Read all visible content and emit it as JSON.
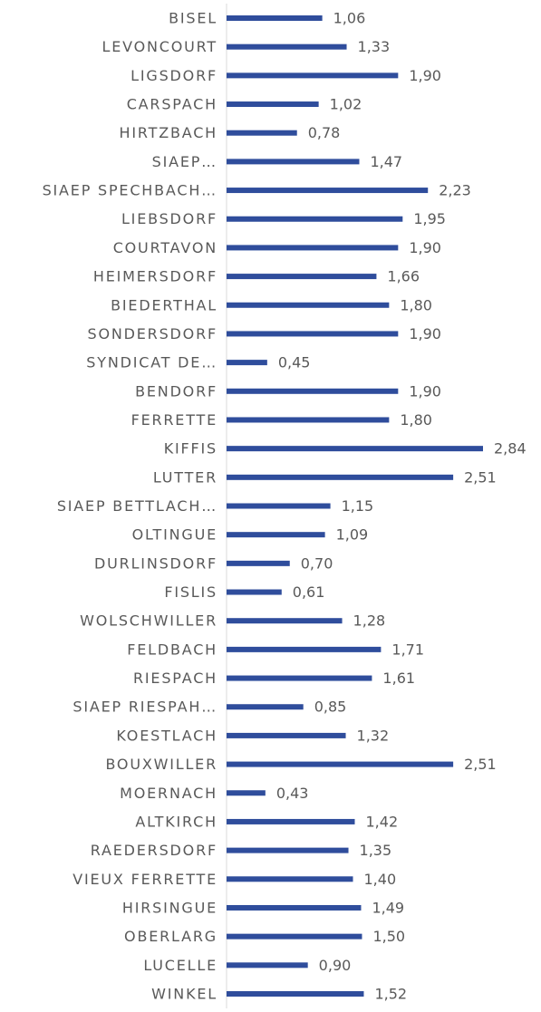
{
  "chart_data": {
    "type": "barh",
    "color": "#2f4d9c",
    "categories": [
      "BISEL",
      "LEVONCOURT",
      "LIGSDORF",
      "CARSPACH",
      "HIRTZBACH",
      "SIAEP…",
      "SIAEP SPECHBACH…",
      "LIEBSDORF",
      "COURTAVON",
      "HEIMERSDORF",
      "BIEDERTHAL",
      "SONDERSDORF",
      "SYNDICAT DE…",
      "BENDORF",
      "FERRETTE",
      "KIFFIS",
      "LUTTER",
      "SIAEP BETTLACH…",
      "OLTINGUE",
      "DURLINSDORF",
      "FISLIS",
      "WOLSCHWILLER",
      "FELDBACH",
      "RIESPACH",
      "SIAEP RIESPAH…",
      "KOESTLACH",
      "BOUXWILLER",
      "MOERNACH",
      "ALTKIRCH",
      "RAEDERSDORF",
      "VIEUX FERRETTE",
      "HIRSINGUE",
      "OBERLARG",
      "LUCELLE",
      "WINKEL"
    ],
    "values": [
      1.06,
      1.33,
      1.9,
      1.02,
      0.78,
      1.47,
      2.23,
      1.95,
      1.9,
      1.66,
      1.8,
      1.9,
      0.45,
      1.9,
      1.8,
      2.84,
      2.51,
      1.15,
      1.09,
      0.7,
      0.61,
      1.28,
      1.71,
      1.61,
      0.85,
      1.32,
      2.51,
      0.43,
      1.42,
      1.35,
      1.4,
      1.49,
      1.5,
      0.9,
      1.52
    ],
    "value_labels": [
      "1,06",
      "1,33",
      "1,90",
      "1,02",
      "0,78",
      "1,47",
      "2,23",
      "1,95",
      "1,90",
      "1,66",
      "1,80",
      "1,90",
      "0,45",
      "1,90",
      "1,80",
      "2,84",
      "2,51",
      "1,15",
      "1,09",
      "0,70",
      "0,61",
      "1,28",
      "1,71",
      "1,61",
      "0,85",
      "1,32",
      "2,51",
      "0,43",
      "1,42",
      "1,35",
      "1,40",
      "1,49",
      "1,50",
      "0,90",
      "1,52"
    ]
  }
}
